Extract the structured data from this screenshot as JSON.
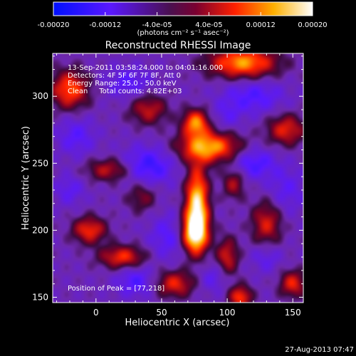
{
  "chart_data": {
    "type": "heatmap",
    "title": "Reconstructed RHESSI Image",
    "xlabel": "Heliocentric X (arcsec)",
    "ylabel": "Heliocentric Y (arcsec)",
    "xlim": [
      -33,
      158
    ],
    "ylim": [
      146,
      332
    ],
    "x_ticks": [
      0,
      50,
      100,
      150
    ],
    "y_ticks": [
      150,
      200,
      250,
      300
    ],
    "colorbar": {
      "range": [
        -0.0002,
        0.0002
      ],
      "tick_values": [
        -0.0002,
        -0.00012,
        -4e-05,
        4e-05,
        0.00012,
        0.0002
      ],
      "tick_labels": [
        "-0.00020",
        "-0.00012",
        "-4.0e-05",
        "4.0e-05",
        "0.00012",
        "0.00020"
      ],
      "unit_label": "(photons cm⁻² s⁻¹ asec⁻²)",
      "colors": [
        "#0000ff",
        "#ff0000",
        "#ffff00",
        "#ffffff"
      ]
    },
    "annotations": [
      "13-Sep-2011 03:58:24.000 to 04:01:16.000",
      "Detectors: 4F 5F 6F 7F 8F, Att 0",
      "Energy Range: 25.0 - 50.0 keV",
      "Clean     Total counts: 4.82E+03"
    ],
    "peak_label": "Position of Peak = [77,218]",
    "peak": [
      77,
      218
    ],
    "sources": [
      {
        "x": 77,
        "y": 218,
        "value": 0.0002,
        "sx": 6,
        "sy": 20
      },
      {
        "x": 75,
        "y": 198,
        "value": 0.00016,
        "sx": 7,
        "sy": 10
      },
      {
        "x": 86,
        "y": 262,
        "value": 0.00016,
        "sx": 16,
        "sy": 8
      },
      {
        "x": 76,
        "y": 280,
        "value": 0.00014,
        "sx": 7,
        "sy": 7
      },
      {
        "x": 112,
        "y": 325,
        "value": 0.00015,
        "sx": 18,
        "sy": 8
      },
      {
        "x": -20,
        "y": 305,
        "value": 0.00012,
        "sx": 10,
        "sy": 10
      },
      {
        "x": -5,
        "y": 200,
        "value": 0.0001,
        "sx": 9,
        "sy": 7
      },
      {
        "x": 10,
        "y": 245,
        "value": 7e-05,
        "sx": 12,
        "sy": 6
      },
      {
        "x": 20,
        "y": 180,
        "value": 0.0001,
        "sx": 12,
        "sy": 6
      },
      {
        "x": 60,
        "y": 160,
        "value": 9e-05,
        "sx": 10,
        "sy": 7
      },
      {
        "x": 110,
        "y": 150,
        "value": 0.00011,
        "sx": 6,
        "sy": 6
      },
      {
        "x": 150,
        "y": 160,
        "value": 9e-05,
        "sx": 7,
        "sy": 7
      },
      {
        "x": 145,
        "y": 275,
        "value": 9e-05,
        "sx": 10,
        "sy": 8
      },
      {
        "x": 130,
        "y": 205,
        "value": 8e-05,
        "sx": 8,
        "sy": 12
      },
      {
        "x": 100,
        "y": 180,
        "value": 8e-05,
        "sx": 6,
        "sy": 10
      },
      {
        "x": 40,
        "y": 290,
        "value": 7e-05,
        "sx": 10,
        "sy": 8
      },
      {
        "x": 105,
        "y": 235,
        "value": 6e-05,
        "sx": 6,
        "sy": 8
      },
      {
        "x": 35,
        "y": 225,
        "value": 4e-05,
        "sx": 8,
        "sy": 8
      },
      {
        "x": 40,
        "y": 248,
        "value": -0.00012,
        "sx": 14,
        "sy": 10
      },
      {
        "x": 120,
        "y": 300,
        "value": -0.0001,
        "sx": 16,
        "sy": 9
      },
      {
        "x": 120,
        "y": 250,
        "value": -0.00011,
        "sx": 12,
        "sy": 8
      },
      {
        "x": 145,
        "y": 230,
        "value": -8e-05,
        "sx": 10,
        "sy": 12
      },
      {
        "x": -15,
        "y": 270,
        "value": -9e-05,
        "sx": 10,
        "sy": 10
      },
      {
        "x": 25,
        "y": 310,
        "value": -9e-05,
        "sx": 12,
        "sy": 8
      },
      {
        "x": 55,
        "y": 195,
        "value": -9e-05,
        "sx": 10,
        "sy": 12
      },
      {
        "x": 30,
        "y": 162,
        "value": -0.0001,
        "sx": 10,
        "sy": 8
      },
      {
        "x": 90,
        "y": 165,
        "value": -8e-05,
        "sx": 8,
        "sy": 8
      },
      {
        "x": 130,
        "y": 180,
        "value": -8e-05,
        "sx": 8,
        "sy": 8
      },
      {
        "x": -20,
        "y": 230,
        "value": -8e-05,
        "sx": 8,
        "sy": 8
      },
      {
        "x": 100,
        "y": 285,
        "value": -7e-05,
        "sx": 8,
        "sy": 8
      }
    ]
  },
  "footer_timestamp": "27-Aug-2013 07:47"
}
